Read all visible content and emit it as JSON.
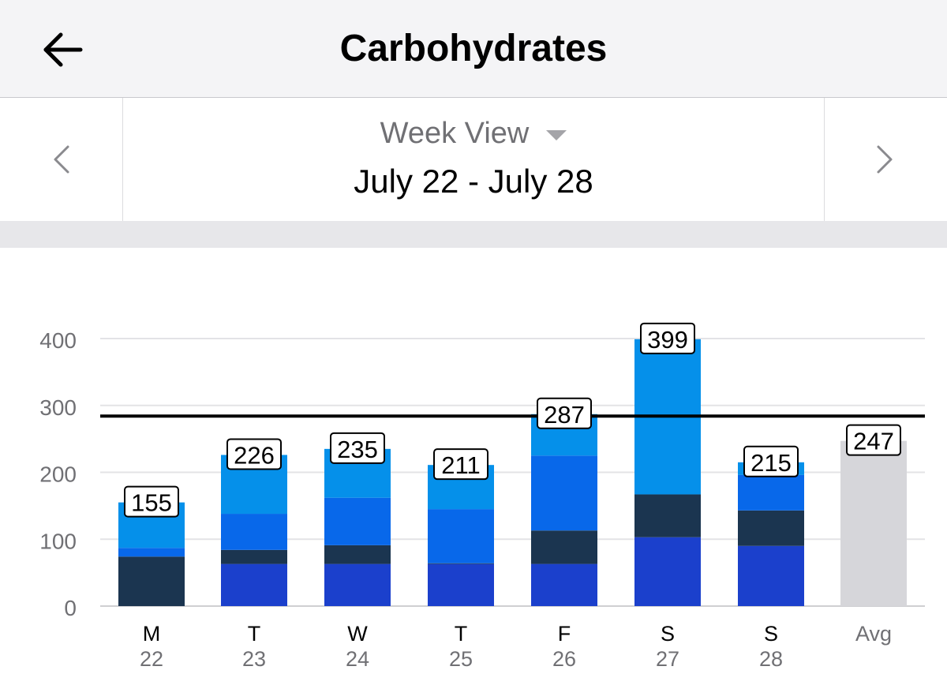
{
  "header": {
    "title": "Carbohydrates",
    "back_icon": "arrow-left-icon"
  },
  "navigation": {
    "view_label": "Week View",
    "date_range": "July 22 - July 28",
    "prev_icon": "chevron-left-icon",
    "next_icon": "chevron-right-icon"
  },
  "chart_data": {
    "type": "bar",
    "stacked": true,
    "ylim": [
      0,
      400
    ],
    "yticks": [
      "0",
      "100",
      "200",
      "300",
      "400"
    ],
    "goal_line": 284,
    "grid": true,
    "categories": [
      {
        "day": "M",
        "date": "22",
        "total": "155"
      },
      {
        "day": "T",
        "date": "23",
        "total": "226"
      },
      {
        "day": "W",
        "date": "24",
        "total": "235"
      },
      {
        "day": "T",
        "date": "25",
        "total": "211"
      },
      {
        "day": "F",
        "date": "26",
        "total": "287"
      },
      {
        "day": "S",
        "date": "27",
        "total": "399"
      },
      {
        "day": "S",
        "date": "28",
        "total": "215"
      },
      {
        "day": "Avg",
        "date": "",
        "total": "247"
      }
    ],
    "series": [
      {
        "color": "#1b40cc",
        "values": [
          0,
          63,
          63,
          63,
          63,
          103,
          90,
          0
        ]
      },
      {
        "color": "#1b3550",
        "values": [
          74,
          21,
          28,
          1,
          50,
          64,
          53,
          0
        ]
      },
      {
        "color": "#0868ea",
        "values": [
          13,
          54,
          71,
          81,
          112,
          0,
          53,
          0
        ]
      },
      {
        "color": "#0590ea",
        "values": [
          68,
          88,
          73,
          66,
          62,
          232,
          19,
          0
        ]
      },
      {
        "color": "#d6d6da",
        "values": [
          0,
          0,
          0,
          0,
          0,
          0,
          0,
          247
        ]
      }
    ]
  }
}
